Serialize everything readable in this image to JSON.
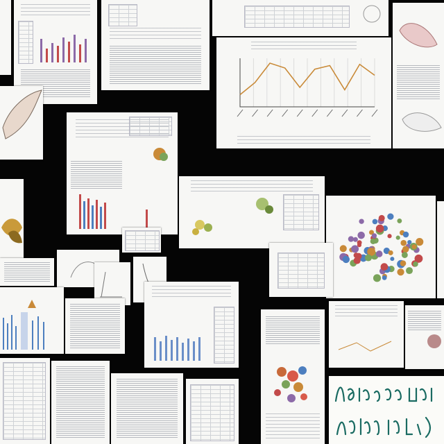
{
  "scene": {
    "background_color": "#050505",
    "paper_color": "#f7f7f5",
    "accent_colors": [
      "#c98a38",
      "#8c6aa8",
      "#c24a4a",
      "#4d7fbf",
      "#7aa35a"
    ]
  },
  "line_chart": {
    "type": "line",
    "title": "",
    "xlabel": "",
    "ylabel": "",
    "series": [
      {
        "values": [
          1.0,
          2.0,
          3.6,
          3.2,
          1.6,
          3.1,
          3.4,
          1.4,
          3.5,
          2.6
        ]
      }
    ],
    "line_color": "#c98a38"
  },
  "handwriting": {
    "line1": "",
    "line2": ""
  }
}
